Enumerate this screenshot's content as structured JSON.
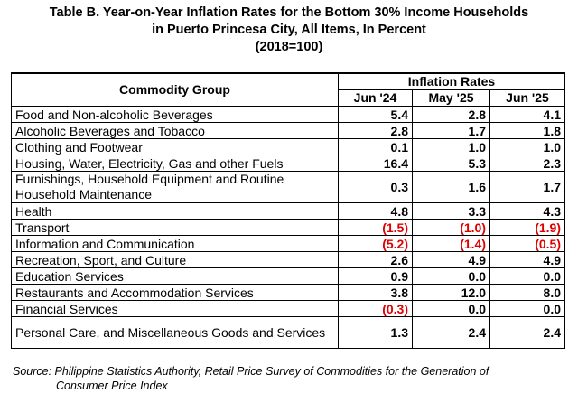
{
  "title": {
    "line1": "Table B. Year-on-Year Inflation Rates for the Bottom 30% Income Households",
    "line2": "in Puerto Princesa City, All Items, In Percent",
    "line3": "(2018=100)"
  },
  "table": {
    "group_header": "Commodity Group",
    "rates_header": "Inflation Rates",
    "columns": [
      "Jun '24",
      "May '25",
      "Jun '25"
    ],
    "rows": [
      {
        "name": "Food and Non-alcoholic Beverages",
        "values": [
          "5.4",
          "2.8",
          "4.1"
        ]
      },
      {
        "name": "Alcoholic Beverages and Tobacco",
        "values": [
          "2.8",
          "1.7",
          "1.8"
        ]
      },
      {
        "name": "Clothing and Footwear",
        "values": [
          "0.1",
          "1.0",
          "1.0"
        ]
      },
      {
        "name": "Housing, Water, Electricity, Gas and other Fuels",
        "values": [
          "16.4",
          "5.3",
          "2.3"
        ]
      },
      {
        "name": "Furnishings, Household Equipment and Routine Household Maintenance",
        "values": [
          "0.3",
          "1.6",
          "1.7"
        ]
      },
      {
        "name": "Health",
        "values": [
          "4.8",
          "3.3",
          "4.3"
        ]
      },
      {
        "name": "Transport",
        "values": [
          "(1.5)",
          "(1.0)",
          "(1.9)"
        ]
      },
      {
        "name": "Information and Communication",
        "values": [
          "(5.2)",
          "(1.4)",
          "(0.5)"
        ]
      },
      {
        "name": "Recreation, Sport, and Culture",
        "values": [
          "2.6",
          "4.9",
          "4.9"
        ]
      },
      {
        "name": "Education Services",
        "values": [
          "0.9",
          "0.0",
          "0.0"
        ]
      },
      {
        "name": "Restaurants and Accommodation Services",
        "values": [
          "3.8",
          "12.0",
          "8.0"
        ]
      },
      {
        "name": "Financial Services",
        "values": [
          "(0.3)",
          "0.0",
          "0.0"
        ]
      },
      {
        "name": "Personal Care, and Miscellaneous Goods and Services",
        "values": [
          "1.3",
          "2.4",
          "2.4"
        ]
      }
    ]
  },
  "source": {
    "line1": "Source: Philippine Statistics Authority, Retail Price Survey of Commodities for the Generation of",
    "line2": "Consumer Price Index"
  },
  "colors": {
    "negative_value": "#e00000",
    "text": "#000000",
    "background": "#ffffff"
  }
}
